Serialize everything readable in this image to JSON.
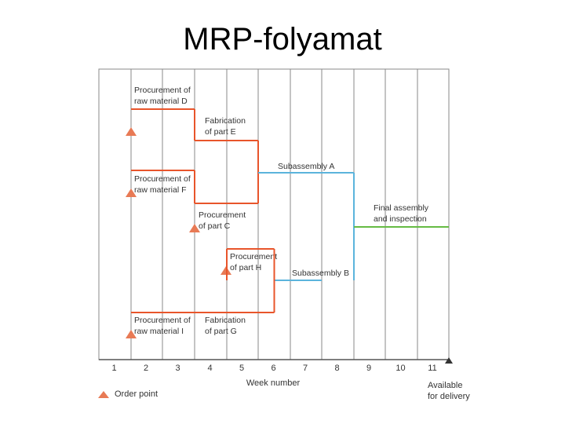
{
  "title": "MRP-folyamat",
  "chart": {
    "weeks": [
      "1",
      "2",
      "3",
      "4",
      "5",
      "6",
      "7",
      "8",
      "9",
      "10",
      "11"
    ],
    "xlabel": "Week number",
    "delivery_label": [
      "Available",
      "for delivery"
    ],
    "legend_label": "Order point",
    "colors": {
      "procurement": "#e8552b",
      "subassembly": "#5bb4dc",
      "final": "#66bb44",
      "marker": "#e87a55",
      "grid": "#888888",
      "text": "#333333"
    },
    "tasks": [
      {
        "id": "proc-d",
        "label": [
          "Procurement of",
          "raw material D"
        ],
        "start": 1,
        "end": 3,
        "order_point": true,
        "color_key": "procurement"
      },
      {
        "id": "fab-e",
        "label": [
          "Fabrication",
          "of part E"
        ],
        "start": 3,
        "end": 5,
        "order_point": false,
        "color_key": "procurement"
      },
      {
        "id": "proc-f",
        "label": [
          "Procurement of",
          "raw material F"
        ],
        "start": 1,
        "end": 3,
        "order_point": true,
        "color_key": "procurement"
      },
      {
        "id": "proc-c",
        "label": [
          "Procurement",
          "of part C"
        ],
        "start": 3,
        "end": 5,
        "order_point": true,
        "color_key": "procurement"
      },
      {
        "id": "sub-a",
        "label": [
          "Subassembly A"
        ],
        "start": 5,
        "end": 8,
        "order_point": false,
        "color_key": "subassembly"
      },
      {
        "id": "proc-h",
        "label": [
          "Procurement",
          "of part H"
        ],
        "start": 4,
        "end": 5.5,
        "order_point": true,
        "color_key": "procurement"
      },
      {
        "id": "sub-b",
        "label": [
          "Subassembly B"
        ],
        "start": 5.5,
        "end": 7,
        "order_point": false,
        "color_key": "subassembly"
      },
      {
        "id": "proc-i",
        "label": [
          "Procurement of",
          "raw material I"
        ],
        "start": 1,
        "end": 3,
        "order_point": true,
        "color_key": "procurement"
      },
      {
        "id": "fab-g",
        "label": [
          "Fabrication",
          "of part G"
        ],
        "start": 3,
        "end": 5.5,
        "order_point": false,
        "color_key": "procurement"
      },
      {
        "id": "final",
        "label": [
          "Final assembly",
          "and inspection"
        ],
        "start": 8,
        "end": 11,
        "order_point": false,
        "color_key": "final"
      }
    ]
  }
}
